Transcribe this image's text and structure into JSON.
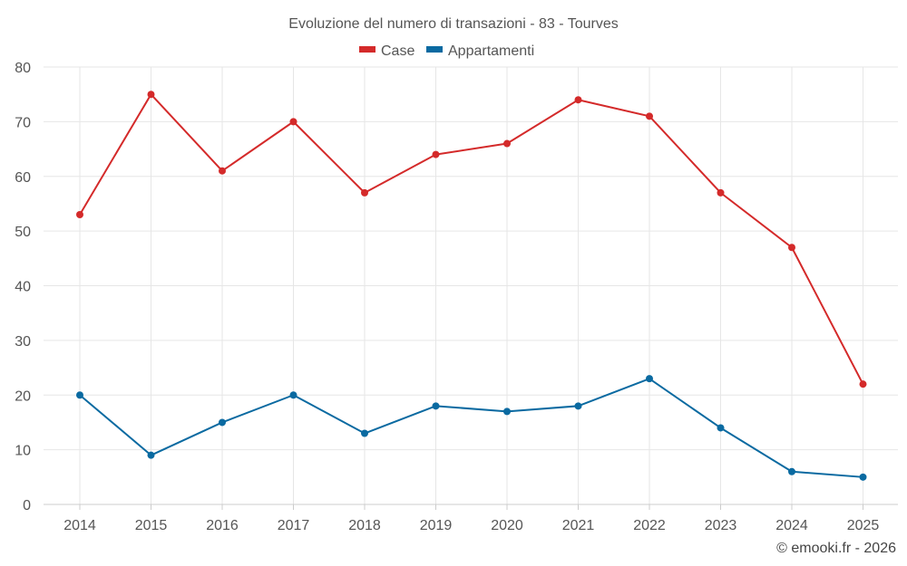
{
  "chart_data": {
    "type": "line",
    "title": "Evoluzione del numero di transazioni - 83 - Tourves",
    "xlabel": "",
    "ylabel": "",
    "categories": [
      "2014",
      "2015",
      "2016",
      "2017",
      "2018",
      "2019",
      "2020",
      "2021",
      "2022",
      "2023",
      "2024",
      "2025"
    ],
    "ylim": [
      0,
      80
    ],
    "yticks": [
      0,
      10,
      20,
      30,
      40,
      50,
      60,
      70,
      80
    ],
    "grid": true,
    "legend_position": "top-center",
    "series": [
      {
        "name": "Case",
        "color": "#d42a2a",
        "values": [
          53,
          75,
          61,
          70,
          57,
          64,
          66,
          74,
          71,
          57,
          47,
          22
        ]
      },
      {
        "name": "Appartamenti",
        "color": "#0a6aa1",
        "values": [
          20,
          9,
          15,
          20,
          13,
          18,
          17,
          18,
          23,
          14,
          6,
          5
        ]
      }
    ]
  },
  "credit": "© emooki.fr - 2026"
}
